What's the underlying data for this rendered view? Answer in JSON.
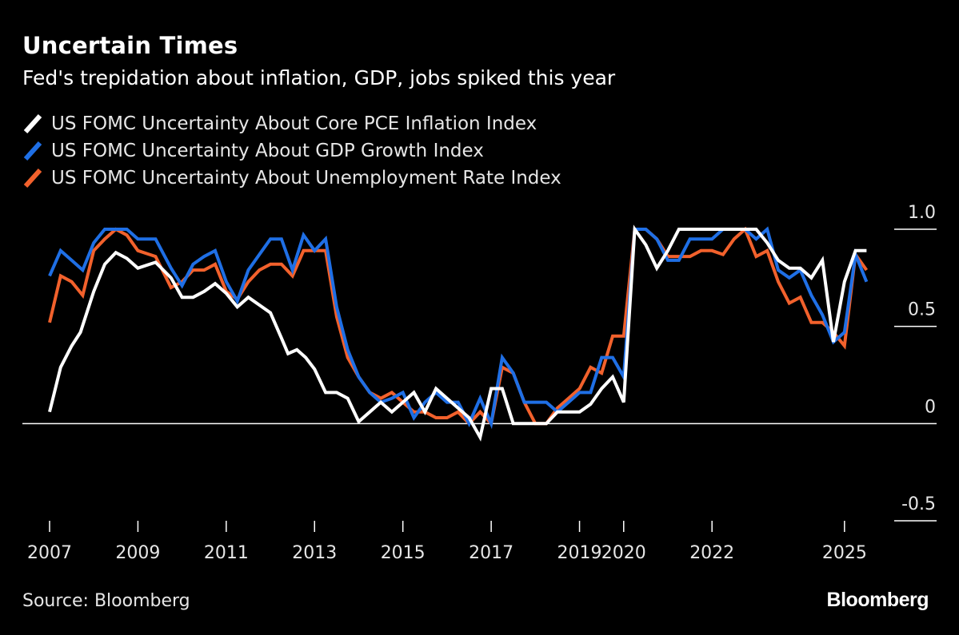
{
  "title": "Uncertain Times",
  "subtitle": "Fed's trepidation about inflation, GDP, jobs spiked this year",
  "source": "Source: Bloomberg",
  "brand": "Bloomberg",
  "chart_data": {
    "type": "line",
    "ylim": [
      -0.5,
      1.0
    ],
    "yticks": [
      1.0,
      0.5,
      0,
      -0.5
    ],
    "ytick_labels": [
      "1.0",
      "0.5",
      "0",
      "-0.5"
    ],
    "xlim": [
      2007.0,
      2025.8
    ],
    "xticks": [
      2007,
      2009,
      2011,
      2013,
      2015,
      2017,
      2019,
      2020,
      2022,
      2025
    ],
    "xtick_labels": [
      "2007",
      "2009",
      "2011",
      "2013",
      "2015",
      "2017",
      "2019",
      "2020",
      "2022",
      "2025"
    ],
    "grid": false,
    "legend_position": "top-left",
    "series": [
      {
        "name": "US FOMC Uncertainty About Core PCE Inflation Index",
        "color": "#ffffff",
        "points": [
          [
            2007.0,
            0.06
          ],
          [
            2007.25,
            0.29
          ],
          [
            2007.5,
            0.4
          ],
          [
            2007.7,
            0.47
          ],
          [
            2008.0,
            0.68
          ],
          [
            2008.25,
            0.82
          ],
          [
            2008.5,
            0.88
          ],
          [
            2008.75,
            0.85
          ],
          [
            2009.0,
            0.8
          ],
          [
            2009.4,
            0.83
          ],
          [
            2009.75,
            0.75
          ],
          [
            2010.0,
            0.65
          ],
          [
            2010.25,
            0.65
          ],
          [
            2010.5,
            0.68
          ],
          [
            2010.75,
            0.72
          ],
          [
            2011.0,
            0.67
          ],
          [
            2011.25,
            0.6
          ],
          [
            2011.5,
            0.65
          ],
          [
            2011.75,
            0.61
          ],
          [
            2012.0,
            0.57
          ],
          [
            2012.25,
            0.44
          ],
          [
            2012.4,
            0.36
          ],
          [
            2012.6,
            0.38
          ],
          [
            2012.8,
            0.34
          ],
          [
            2013.0,
            0.28
          ],
          [
            2013.25,
            0.16
          ],
          [
            2013.5,
            0.16
          ],
          [
            2013.75,
            0.13
          ],
          [
            2014.0,
            0.01
          ],
          [
            2014.25,
            0.06
          ],
          [
            2014.5,
            0.11
          ],
          [
            2014.75,
            0.06
          ],
          [
            2015.0,
            0.11
          ],
          [
            2015.25,
            0.16
          ],
          [
            2015.5,
            0.06
          ],
          [
            2015.75,
            0.18
          ],
          [
            2016.0,
            0.13
          ],
          [
            2016.25,
            0.08
          ],
          [
            2016.5,
            0.03
          ],
          [
            2016.75,
            -0.07
          ],
          [
            2017.0,
            0.18
          ],
          [
            2017.25,
            0.18
          ],
          [
            2017.5,
            0.0
          ],
          [
            2017.75,
            0.0
          ],
          [
            2018.0,
            0.0
          ],
          [
            2018.25,
            0.0
          ],
          [
            2018.5,
            0.06
          ],
          [
            2018.75,
            0.06
          ],
          [
            2019.0,
            0.06
          ],
          [
            2019.25,
            0.1
          ],
          [
            2019.5,
            0.18
          ],
          [
            2019.75,
            0.24
          ],
          [
            2020.0,
            0.11
          ],
          [
            2020.25,
            1.0
          ],
          [
            2020.5,
            0.92
          ],
          [
            2020.75,
            0.8
          ],
          [
            2021.0,
            0.89
          ],
          [
            2021.25,
            1.0
          ],
          [
            2021.5,
            1.0
          ],
          [
            2021.75,
            1.0
          ],
          [
            2022.0,
            1.0
          ],
          [
            2022.25,
            1.0
          ],
          [
            2022.5,
            1.0
          ],
          [
            2022.75,
            1.0
          ],
          [
            2023.0,
            1.0
          ],
          [
            2023.25,
            0.93
          ],
          [
            2023.5,
            0.84
          ],
          [
            2023.75,
            0.8
          ],
          [
            2024.0,
            0.8
          ],
          [
            2024.25,
            0.75
          ],
          [
            2024.5,
            0.84
          ],
          [
            2024.75,
            0.42
          ],
          [
            2025.0,
            0.73
          ],
          [
            2025.25,
            0.89
          ],
          [
            2025.5,
            0.89
          ]
        ]
      },
      {
        "name": "US FOMC Uncertainty About GDP Growth Index",
        "color": "#1f6fe5",
        "points": [
          [
            2007.0,
            0.76
          ],
          [
            2007.25,
            0.89
          ],
          [
            2007.5,
            0.84
          ],
          [
            2007.75,
            0.79
          ],
          [
            2008.0,
            0.93
          ],
          [
            2008.25,
            1.0
          ],
          [
            2008.5,
            1.0
          ],
          [
            2008.75,
            1.0
          ],
          [
            2009.0,
            0.95
          ],
          [
            2009.4,
            0.95
          ],
          [
            2009.75,
            0.8
          ],
          [
            2010.0,
            0.71
          ],
          [
            2010.25,
            0.82
          ],
          [
            2010.5,
            0.86
          ],
          [
            2010.75,
            0.89
          ],
          [
            2011.0,
            0.73
          ],
          [
            2011.25,
            0.63
          ],
          [
            2011.5,
            0.79
          ],
          [
            2011.75,
            0.87
          ],
          [
            2012.0,
            0.95
          ],
          [
            2012.25,
            0.95
          ],
          [
            2012.5,
            0.79
          ],
          [
            2012.75,
            0.97
          ],
          [
            2013.0,
            0.89
          ],
          [
            2013.25,
            0.95
          ],
          [
            2013.5,
            0.6
          ],
          [
            2013.75,
            0.38
          ],
          [
            2014.0,
            0.24
          ],
          [
            2014.25,
            0.16
          ],
          [
            2014.5,
            0.11
          ],
          [
            2014.75,
            0.13
          ],
          [
            2015.0,
            0.16
          ],
          [
            2015.25,
            0.03
          ],
          [
            2015.5,
            0.11
          ],
          [
            2015.75,
            0.16
          ],
          [
            2016.0,
            0.11
          ],
          [
            2016.25,
            0.11
          ],
          [
            2016.5,
            0.0
          ],
          [
            2016.75,
            0.13
          ],
          [
            2017.0,
            0.0
          ],
          [
            2017.25,
            0.34
          ],
          [
            2017.5,
            0.26
          ],
          [
            2017.75,
            0.11
          ],
          [
            2018.0,
            0.11
          ],
          [
            2018.25,
            0.11
          ],
          [
            2018.5,
            0.06
          ],
          [
            2018.75,
            0.11
          ],
          [
            2019.0,
            0.16
          ],
          [
            2019.25,
            0.16
          ],
          [
            2019.5,
            0.34
          ],
          [
            2019.75,
            0.34
          ],
          [
            2020.0,
            0.24
          ],
          [
            2020.25,
            1.0
          ],
          [
            2020.5,
            1.0
          ],
          [
            2020.75,
            0.95
          ],
          [
            2021.0,
            0.84
          ],
          [
            2021.25,
            0.84
          ],
          [
            2021.5,
            0.95
          ],
          [
            2021.75,
            0.95
          ],
          [
            2022.0,
            0.95
          ],
          [
            2022.25,
            1.0
          ],
          [
            2022.5,
            1.0
          ],
          [
            2022.75,
            1.0
          ],
          [
            2023.0,
            0.95
          ],
          [
            2023.25,
            1.0
          ],
          [
            2023.5,
            0.79
          ],
          [
            2023.75,
            0.75
          ],
          [
            2024.0,
            0.79
          ],
          [
            2024.25,
            0.66
          ],
          [
            2024.5,
            0.56
          ],
          [
            2024.75,
            0.42
          ],
          [
            2025.0,
            0.47
          ],
          [
            2025.25,
            0.87
          ],
          [
            2025.5,
            0.73
          ]
        ]
      },
      {
        "name": "US FOMC Uncertainty About Unemployment Rate Index",
        "color": "#f2612c",
        "points": [
          [
            2007.0,
            0.52
          ],
          [
            2007.25,
            0.76
          ],
          [
            2007.5,
            0.73
          ],
          [
            2007.75,
            0.66
          ],
          [
            2008.0,
            0.89
          ],
          [
            2008.25,
            0.95
          ],
          [
            2008.5,
            1.0
          ],
          [
            2008.75,
            0.97
          ],
          [
            2009.0,
            0.89
          ],
          [
            2009.4,
            0.86
          ],
          [
            2009.75,
            0.7
          ],
          [
            2010.0,
            0.73
          ],
          [
            2010.25,
            0.79
          ],
          [
            2010.5,
            0.79
          ],
          [
            2010.75,
            0.82
          ],
          [
            2011.0,
            0.68
          ],
          [
            2011.25,
            0.64
          ],
          [
            2011.5,
            0.73
          ],
          [
            2011.75,
            0.79
          ],
          [
            2012.0,
            0.82
          ],
          [
            2012.25,
            0.82
          ],
          [
            2012.5,
            0.76
          ],
          [
            2012.75,
            0.89
          ],
          [
            2013.0,
            0.89
          ],
          [
            2013.25,
            0.89
          ],
          [
            2013.5,
            0.55
          ],
          [
            2013.75,
            0.34
          ],
          [
            2014.0,
            0.24
          ],
          [
            2014.25,
            0.16
          ],
          [
            2014.5,
            0.13
          ],
          [
            2014.75,
            0.16
          ],
          [
            2015.0,
            0.11
          ],
          [
            2015.25,
            0.06
          ],
          [
            2015.5,
            0.06
          ],
          [
            2015.75,
            0.03
          ],
          [
            2016.0,
            0.03
          ],
          [
            2016.25,
            0.06
          ],
          [
            2016.5,
            0.0
          ],
          [
            2016.75,
            0.06
          ],
          [
            2017.0,
            0.0
          ],
          [
            2017.25,
            0.29
          ],
          [
            2017.5,
            0.26
          ],
          [
            2017.75,
            0.11
          ],
          [
            2018.0,
            0.0
          ],
          [
            2018.25,
            0.0
          ],
          [
            2018.5,
            0.08
          ],
          [
            2018.75,
            0.13
          ],
          [
            2019.0,
            0.18
          ],
          [
            2019.25,
            0.29
          ],
          [
            2019.5,
            0.26
          ],
          [
            2019.75,
            0.45
          ],
          [
            2020.0,
            0.45
          ],
          [
            2020.25,
            1.0
          ],
          [
            2020.5,
            1.0
          ],
          [
            2020.75,
            0.95
          ],
          [
            2021.0,
            0.86
          ],
          [
            2021.25,
            0.86
          ],
          [
            2021.5,
            0.86
          ],
          [
            2021.75,
            0.89
          ],
          [
            2022.0,
            0.89
          ],
          [
            2022.25,
            0.87
          ],
          [
            2022.5,
            0.95
          ],
          [
            2022.75,
            1.0
          ],
          [
            2023.0,
            0.86
          ],
          [
            2023.25,
            0.89
          ],
          [
            2023.5,
            0.73
          ],
          [
            2023.75,
            0.62
          ],
          [
            2024.0,
            0.65
          ],
          [
            2024.25,
            0.52
          ],
          [
            2024.5,
            0.52
          ],
          [
            2024.75,
            0.47
          ],
          [
            2025.0,
            0.4
          ],
          [
            2025.25,
            0.87
          ],
          [
            2025.5,
            0.79
          ]
        ]
      }
    ]
  }
}
